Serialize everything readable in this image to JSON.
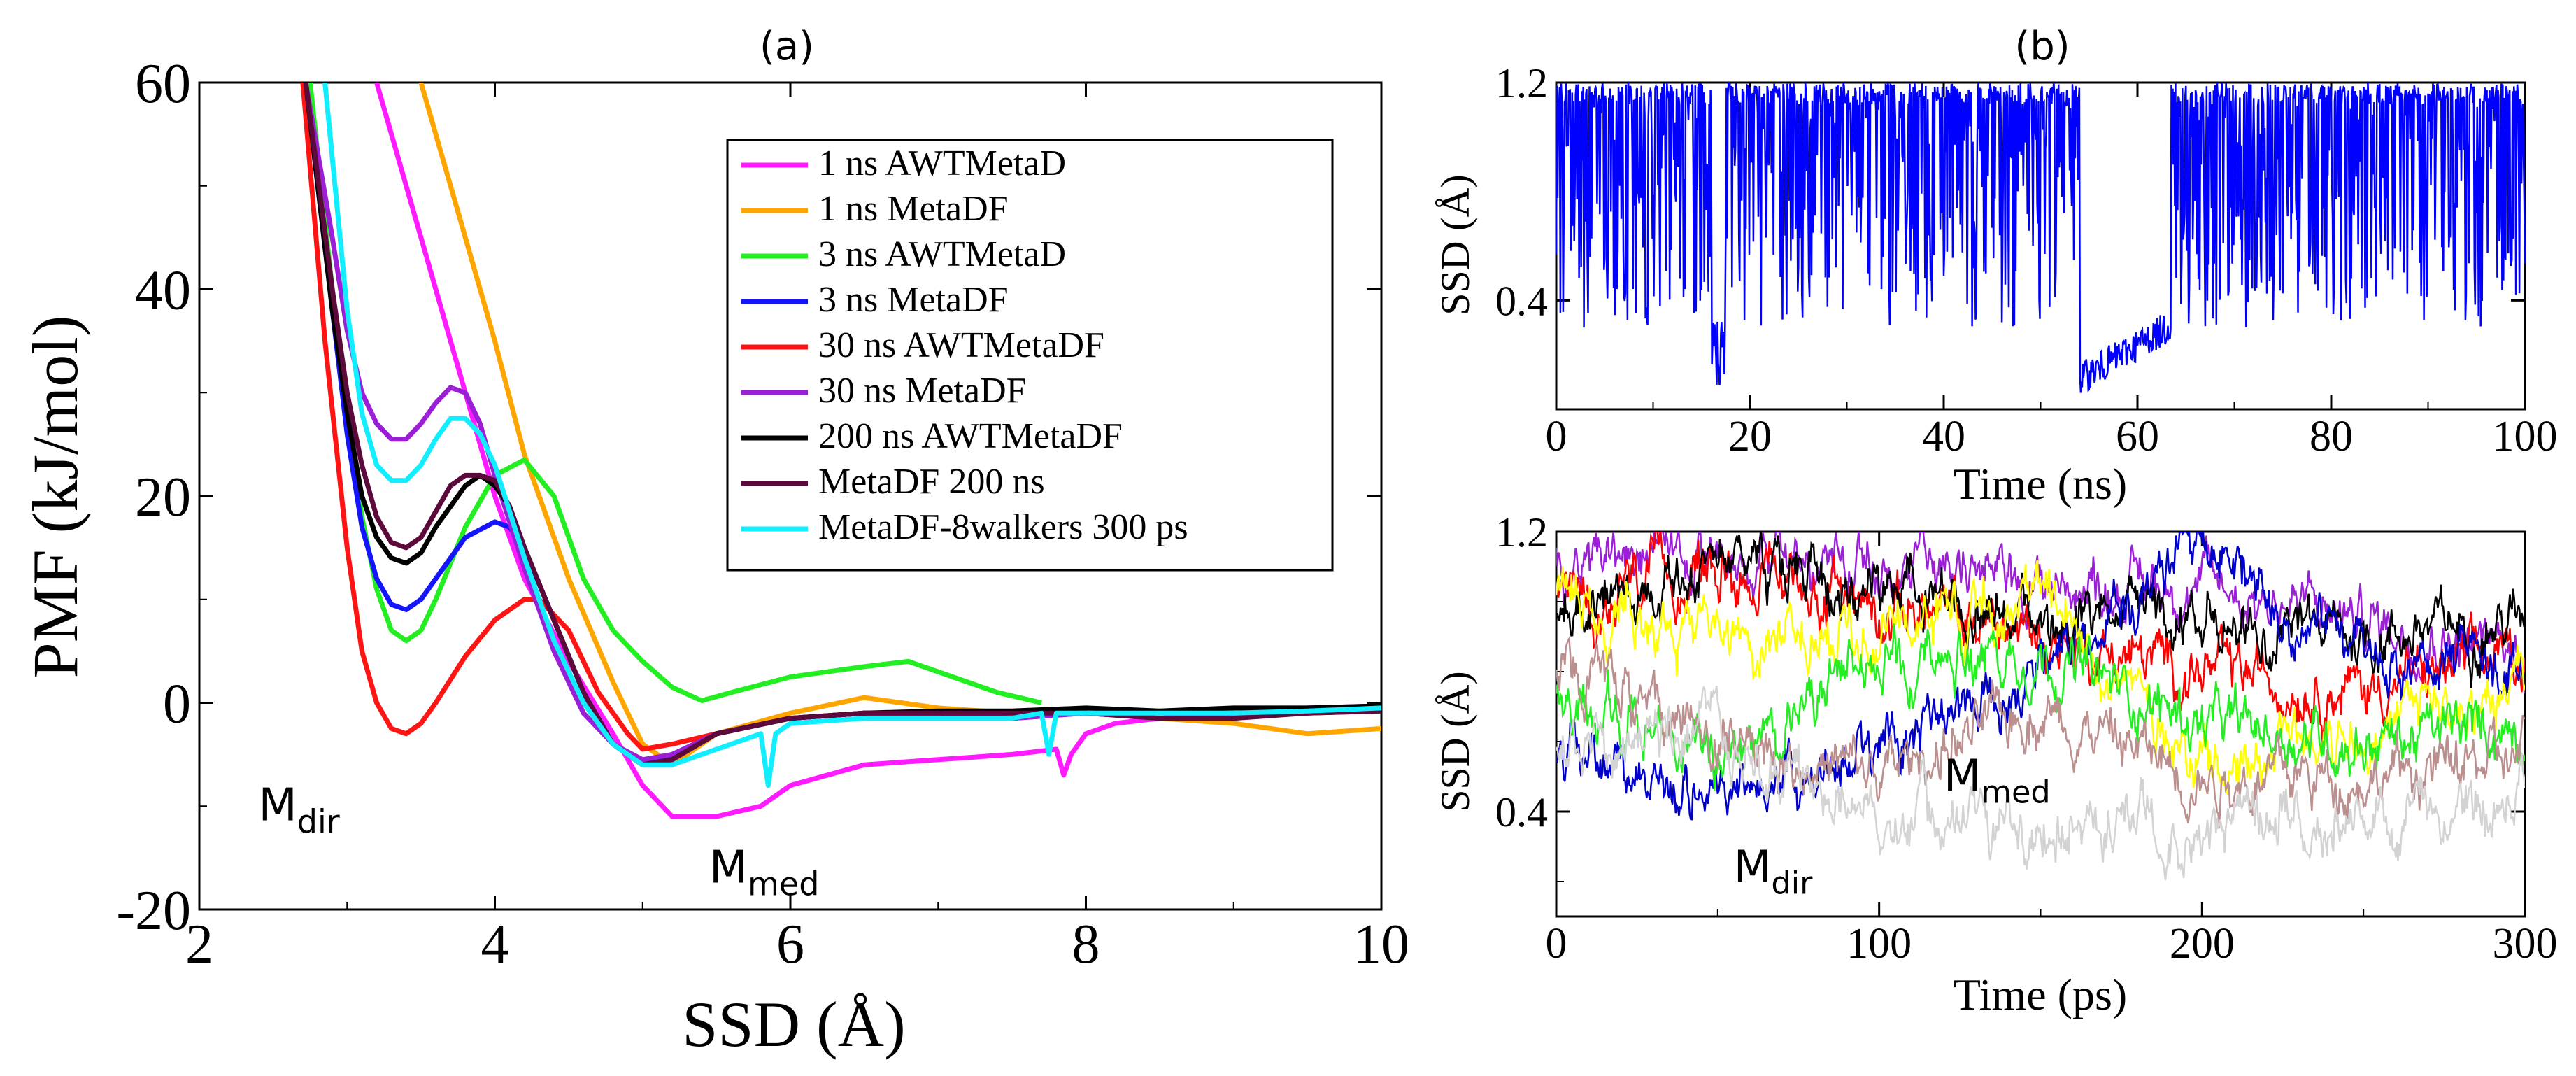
{
  "panel_a": {
    "label": "(a)",
    "chart_data": {
      "type": "line",
      "xlabel": "SSD (Å)",
      "ylabel": "PMF (kJ/mol)",
      "xlim": [
        2,
        10
      ],
      "ylim": [
        -20,
        60
      ],
      "xticks": [
        2,
        4,
        6,
        8,
        10
      ],
      "yticks": [
        -20,
        0,
        20,
        40,
        60
      ],
      "grid": false,
      "legend": "top-right",
      "annotations": [
        {
          "base": "M",
          "sub": "dir",
          "x": 2.85,
          "y": -8
        },
        {
          "base": "M",
          "sub": "med",
          "x": 5.9,
          "y": -14
        }
      ],
      "series": [
        {
          "name": "1 ns AWTMetaD",
          "color": "#ff1aff",
          "x": [
            3.2,
            3.5,
            3.8,
            4.0,
            4.2,
            4.5,
            4.8,
            5.0,
            5.2,
            5.5,
            5.8,
            6.0,
            6.5,
            7.0,
            7.5,
            7.8,
            7.85,
            7.9,
            8.0,
            8.2,
            8.5,
            9.0,
            9.5,
            10.0
          ],
          "y": [
            60,
            45,
            30,
            20,
            12,
            4,
            -3,
            -8,
            -11,
            -11,
            -10,
            -8,
            -6,
            -5.5,
            -5,
            -4.5,
            -7,
            -5,
            -3,
            -2,
            -1.5,
            -1,
            -0.5,
            -0.3
          ]
        },
        {
          "name": "1 ns MetaDF",
          "color": "#ffa500",
          "x": [
            3.5,
            3.8,
            4.0,
            4.2,
            4.5,
            4.8,
            5.0,
            5.2,
            5.5,
            6.0,
            6.5,
            7.0,
            7.5,
            8.0,
            8.5,
            9.0,
            9.5,
            10.0
          ],
          "y": [
            60,
            45,
            35,
            24,
            12,
            2,
            -4,
            -6,
            -3,
            -1,
            0.5,
            -0.5,
            -1,
            -1,
            -1.5,
            -2,
            -3,
            -2.5
          ]
        },
        {
          "name": "3 ns AWTMetaD",
          "color": "#22ee22",
          "x": [
            2.75,
            2.9,
            3.0,
            3.1,
            3.2,
            3.3,
            3.4,
            3.5,
            3.6,
            3.8,
            4.0,
            4.2,
            4.4,
            4.6,
            4.8,
            5.0,
            5.2,
            5.4,
            5.6,
            6.0,
            6.5,
            6.8,
            7.0,
            7.4,
            7.7
          ],
          "y": [
            60,
            40,
            28,
            18,
            11,
            7,
            6,
            7,
            10,
            17,
            22,
            23.5,
            20,
            12,
            7,
            4,
            1.5,
            0.2,
            1,
            2.5,
            3.5,
            4,
            3,
            1,
            0
          ]
        },
        {
          "name": "3 ns MetaDF",
          "color": "#1414ff",
          "x": [
            2.72,
            2.9,
            3.0,
            3.1,
            3.2,
            3.3,
            3.4,
            3.5,
            3.6,
            3.8,
            4.0,
            4.1,
            4.2,
            4.4,
            4.6,
            4.8,
            5.0,
            5.2,
            5.5,
            6.0,
            6.5,
            7.0,
            7.5,
            8.0,
            8.5,
            9.0,
            9.5,
            10.0
          ],
          "y": [
            60,
            38,
            26,
            17,
            12,
            9.5,
            9,
            10,
            12,
            16,
            17.5,
            17,
            15,
            8,
            1,
            -4,
            -6,
            -5,
            -3,
            -1.5,
            -1,
            -1,
            -1.5,
            -1,
            -1.5,
            -1,
            -1,
            -0.5
          ]
        },
        {
          "name": "30 ns AWTMetaDF",
          "color": "#ff1414",
          "x": [
            2.7,
            2.85,
            3.0,
            3.1,
            3.2,
            3.3,
            3.4,
            3.5,
            3.6,
            3.8,
            4.0,
            4.2,
            4.3,
            4.5,
            4.7,
            4.9,
            5.0,
            5.2,
            5.5,
            6.0,
            6.5,
            7.0,
            7.5,
            8.0,
            8.5,
            9.0,
            9.5,
            10.0
          ],
          "y": [
            60,
            35,
            15,
            5,
            0,
            -2.5,
            -3,
            -2,
            0,
            4.5,
            8,
            10,
            10,
            7,
            1,
            -3,
            -4.5,
            -4,
            -3,
            -1.5,
            -1,
            -1,
            -1,
            -1,
            -1,
            -1,
            -1,
            -0.8
          ]
        },
        {
          "name": "30 ns MetaDF",
          "color": "#9b1fd6",
          "x": [
            2.72,
            2.9,
            3.0,
            3.1,
            3.2,
            3.3,
            3.4,
            3.5,
            3.6,
            3.7,
            3.8,
            3.9,
            4.0,
            4.2,
            4.4,
            4.6,
            4.8,
            5.0,
            5.2,
            5.5,
            6.0,
            6.5,
            7.0,
            7.5,
            8.0,
            8.5,
            9.0,
            9.5,
            10.0
          ],
          "y": [
            60,
            45,
            36,
            30,
            27,
            25.5,
            25.5,
            27,
            29,
            30.5,
            30,
            27,
            22,
            13,
            5,
            -1,
            -4,
            -5.5,
            -5,
            -3,
            -1.5,
            -1,
            -1,
            -1.5,
            -1,
            -1.5,
            -1,
            -1,
            -0.5
          ]
        },
        {
          "name": "200 ns AWTMetaDF",
          "color": "#000000",
          "x": [
            2.72,
            2.9,
            3.0,
            3.1,
            3.2,
            3.3,
            3.4,
            3.5,
            3.6,
            3.8,
            3.9,
            4.0,
            4.1,
            4.2,
            4.4,
            4.6,
            4.8,
            5.0,
            5.2,
            5.5,
            6.0,
            6.5,
            7.0,
            7.5,
            8.0,
            8.5,
            9.0,
            9.5,
            10.0
          ],
          "y": [
            60,
            38,
            28,
            20,
            16,
            14,
            13.5,
            14.5,
            17,
            21,
            22,
            21,
            19,
            15,
            8,
            1,
            -4,
            -6,
            -5.5,
            -3,
            -1.5,
            -1,
            -0.8,
            -0.8,
            -0.5,
            -0.8,
            -0.5,
            -0.5,
            -0.3
          ]
        },
        {
          "name": "MetaDF 200 ns",
          "color": "#5c0a3c",
          "x": [
            2.72,
            2.9,
            3.0,
            3.1,
            3.2,
            3.3,
            3.4,
            3.5,
            3.6,
            3.7,
            3.8,
            3.9,
            4.0,
            4.1,
            4.2,
            4.4,
            4.6,
            4.8,
            5.0,
            5.2,
            5.5,
            6.0,
            6.5,
            7.0,
            7.5,
            8.0,
            8.5,
            9.0,
            9.5,
            10.0
          ],
          "y": [
            60,
            40,
            30,
            23,
            18,
            15.5,
            15,
            16,
            18.5,
            21,
            22,
            22,
            21.5,
            19,
            15,
            8,
            1,
            -4,
            -6,
            -5.5,
            -3,
            -1.5,
            -1,
            -1,
            -1,
            -1,
            -1.5,
            -1.5,
            -1,
            -0.8
          ]
        },
        {
          "name": "MetaDF-8walkers 300 ps",
          "color": "#11eeff",
          "x": [
            2.85,
            3.0,
            3.1,
            3.2,
            3.3,
            3.4,
            3.5,
            3.6,
            3.7,
            3.8,
            3.9,
            4.0,
            4.2,
            4.4,
            4.6,
            4.8,
            5.0,
            5.2,
            5.5,
            5.8,
            5.85,
            5.9,
            6.0,
            6.5,
            7.0,
            7.5,
            7.7,
            7.75,
            7.8,
            8.0,
            8.5,
            9.0,
            9.5,
            10.0
          ],
          "y": [
            60,
            38,
            28,
            23,
            21.5,
            21.5,
            23,
            25.5,
            27.5,
            27.5,
            26,
            23,
            14,
            6,
            0,
            -4,
            -6,
            -6,
            -4.5,
            -3,
            -8,
            -3,
            -2,
            -1.5,
            -1.5,
            -1.5,
            -1,
            -5,
            -1,
            -1,
            -1,
            -1,
            -0.8,
            -0.5
          ]
        }
      ]
    }
  },
  "panel_b": {
    "label": "(b)",
    "top": {
      "chart_data": {
        "type": "line",
        "xlabel": "Time (ns)",
        "ylabel": "SSD (Å)",
        "xlim": [
          0,
          100
        ],
        "ylim": [
          0,
          1.2
        ],
        "xticks": [
          0,
          20,
          40,
          60,
          80,
          100
        ],
        "yticks": [
          0.4,
          1.2
        ],
        "grid": false,
        "series": [
          {
            "color": "#0000ff",
            "x": [
              0,
              16,
              17.5,
              54,
              63.5,
              100
            ],
            "y_band_high": [
              1.2,
              1.2,
              1.2,
              1.2,
              1.2,
              1.2
            ],
            "y_band_low": [
              0.3,
              0.05,
              0.3,
              0.05,
              0.3,
              0.3
            ]
          }
        ]
      }
    },
    "bottom": {
      "chart_data": {
        "type": "line",
        "xlabel": "Time (ps)",
        "ylabel": "SSD (Å)",
        "xlim": [
          0,
          300
        ],
        "ylim": [
          0.1,
          1.2
        ],
        "xticks": [
          0,
          100,
          200,
          300
        ],
        "yticks": [
          0.4,
          1.2
        ],
        "grid": false,
        "annotations": [
          {
            "base": "M",
            "sub": "dir",
            "x": 55,
            "y": 0.22
          },
          {
            "base": "M",
            "sub": "med",
            "x": 120,
            "y": 0.48
          }
        ],
        "series": [
          {
            "color": "#9b1fd6",
            "x": [
              0,
              50,
              100,
              150,
              200,
              250,
              300
            ],
            "y": [
              1.1,
              1.15,
              1.1,
              1.05,
              1.05,
              0.95,
              0.85
            ]
          },
          {
            "color": "#ff0000",
            "x": [
              0,
              50,
              100,
              150,
              200,
              250,
              300
            ],
            "y": [
              1.0,
              1.1,
              1.0,
              0.9,
              0.8,
              0.75,
              0.85
            ]
          },
          {
            "color": "#000000",
            "x": [
              0,
              50,
              100,
              150,
              200,
              250,
              300
            ],
            "y": [
              0.95,
              1.1,
              1.05,
              0.95,
              0.95,
              0.9,
              0.95
            ]
          },
          {
            "color": "#0000cc",
            "x": [
              0,
              50,
              100,
              150,
              200,
              250,
              300
            ],
            "y": [
              0.6,
              0.45,
              0.6,
              0.8,
              1.15,
              0.85,
              0.8
            ]
          },
          {
            "color": "#ffff00",
            "x": [
              0,
              50,
              100,
              150,
              200,
              250,
              300
            ],
            "y": [
              1.0,
              0.9,
              0.9,
              1.0,
              0.55,
              0.65,
              0.75
            ]
          },
          {
            "color": "#22ee22",
            "x": [
              0,
              50,
              100,
              150,
              200,
              250,
              300
            ],
            "y": [
              0.75,
              0.55,
              0.85,
              0.85,
              0.65,
              0.6,
              0.65
            ]
          },
          {
            "color": "#bc8f8f",
            "x": [
              0,
              50,
              100,
              150,
              200,
              250,
              300
            ],
            "y": [
              0.8,
              0.6,
              0.5,
              0.7,
              0.5,
              0.5,
              0.55
            ]
          },
          {
            "color": "#d3d3d3",
            "x": [
              0,
              50,
              100,
              150,
              200,
              250,
              300
            ],
            "y": [
              0.6,
              0.6,
              0.38,
              0.38,
              0.36,
              0.38,
              0.42
            ]
          }
        ]
      }
    }
  }
}
